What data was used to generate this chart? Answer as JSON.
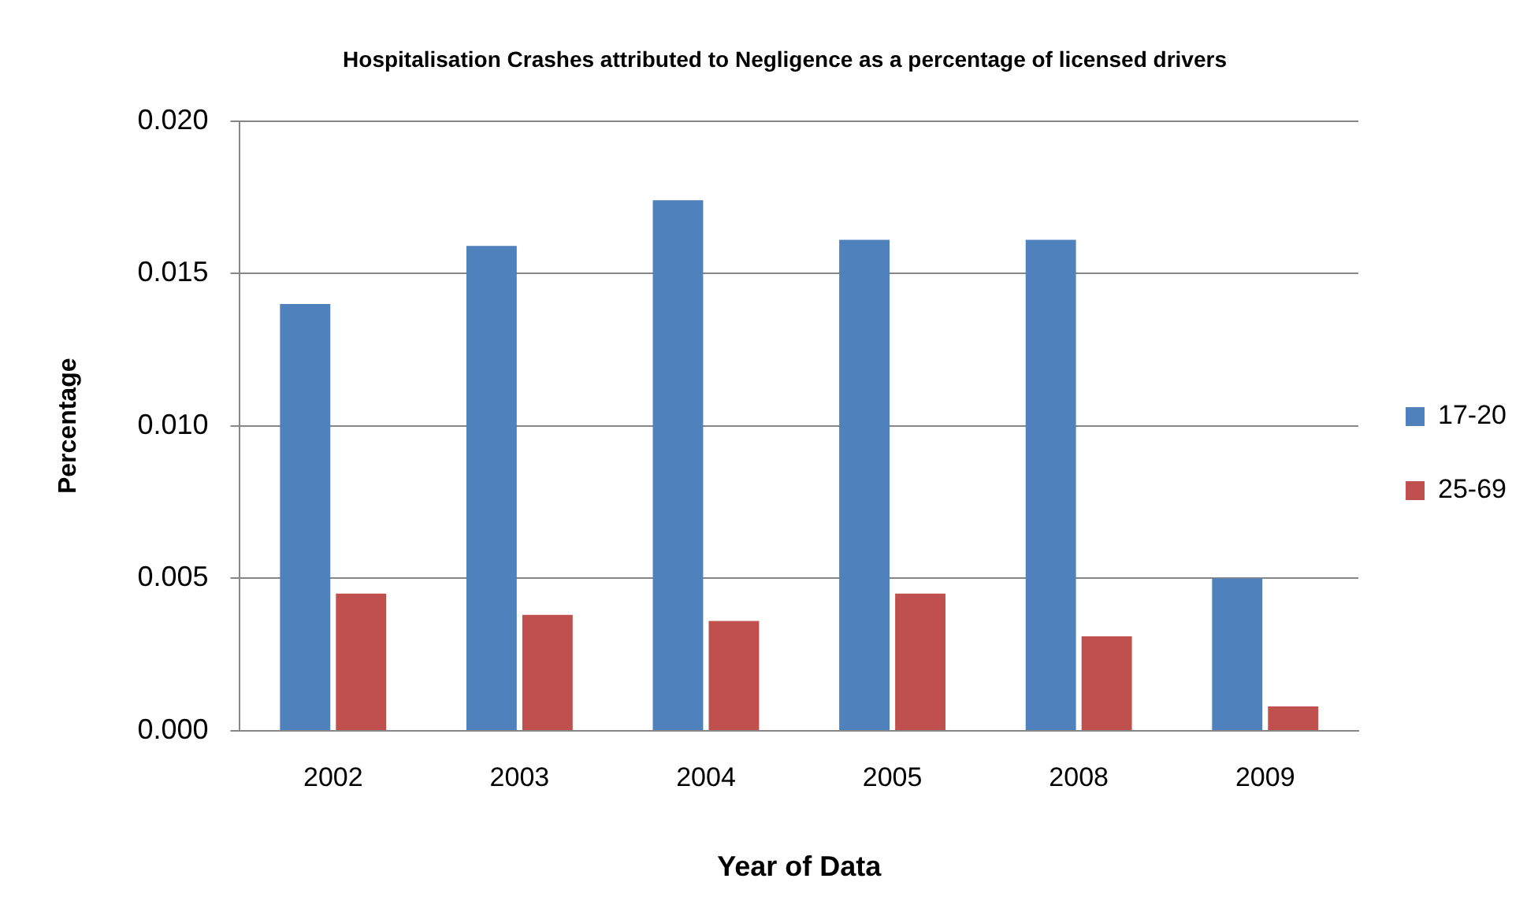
{
  "chart_data": {
    "type": "bar",
    "title": "Hospitalisation Crashes attributed to Negligence as a percentage of licensed drivers",
    "xlabel": "Year of Data",
    "ylabel": "Percentage",
    "categories": [
      "2002",
      "2003",
      "2004",
      "2005",
      "2008",
      "2009"
    ],
    "series": [
      {
        "name": "17-20",
        "color": "#4f81bd",
        "values": [
          0.014,
          0.0159,
          0.0174,
          0.0161,
          0.0161,
          0.005
        ]
      },
      {
        "name": "25-69",
        "color": "#c0504d",
        "values": [
          0.0045,
          0.0038,
          0.0036,
          0.0045,
          0.0031,
          0.0008
        ]
      }
    ],
    "ylim": [
      0,
      0.02
    ],
    "yticks": [
      {
        "value": 0,
        "label": "0.000"
      },
      {
        "value": 0.005,
        "label": "0.005"
      },
      {
        "value": 0.01,
        "label": "0.010"
      },
      {
        "value": 0.015,
        "label": "0.015"
      },
      {
        "value": 0.02,
        "label": "0.020"
      }
    ],
    "grid": "y",
    "legend": "right"
  }
}
